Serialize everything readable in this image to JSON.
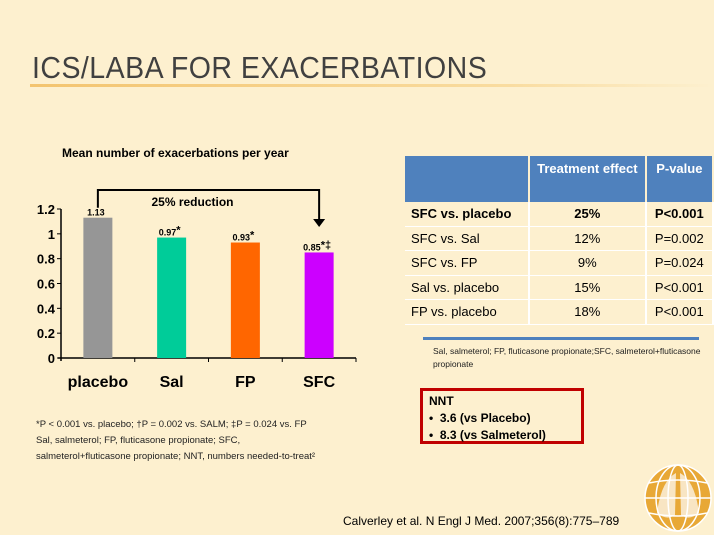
{
  "title": "ICS/LABA FOR EXACERBATIONS",
  "chart_data": {
    "type": "bar",
    "title": "Mean number of exacerbations per year",
    "categories": [
      "placebo",
      "Sal",
      "FP",
      "SFC"
    ],
    "values": [
      1.13,
      0.97,
      0.93,
      0.85
    ],
    "data_labels": [
      "1.13",
      "0.97",
      "0.93",
      "0.85"
    ],
    "label_marks": [
      "",
      "*",
      "*",
      "*‡"
    ],
    "colors": [
      "#969696",
      "#00cc99",
      "#ff6600",
      "#cc00ff"
    ],
    "ylim": [
      0,
      1.2
    ],
    "yticks": [
      "0",
      "0.2",
      "0.4",
      "0.6",
      "0.8",
      "1",
      "1.2"
    ],
    "annotation": "25% reduction",
    "grid": false
  },
  "table": {
    "headers": [
      "",
      "Treatment effect",
      "P-value"
    ],
    "rows": [
      [
        "SFC vs. placebo",
        "25%",
        "P<0.001"
      ],
      [
        "SFC vs. Sal",
        "12%",
        "P=0.002"
      ],
      [
        "SFC vs. FP",
        "9%",
        "P=0.024"
      ],
      [
        "Sal vs. placebo",
        "15%",
        "P<0.001"
      ],
      [
        "FP vs. placebo",
        "18%",
        "P<0.001"
      ]
    ],
    "note": "Sal, salmeterol; FP, fluticasone propionate;SFC, salmeterol+fluticasone propionate"
  },
  "nnt": {
    "heading": "NNT",
    "items": [
      "3.6 (vs Placebo)",
      "8.3 (vs Salmeterol)"
    ]
  },
  "footnotes": [
    "*P < 0.001 vs. placebo; †P = 0.002 vs. SALM; ‡P = 0.024 vs. FP",
    "Sal, salmeterol; FP, fluticasone propionate; SFC,",
    "salmeterol+fluticasone propionate;  NNT, numbers needed-to-treat²"
  ],
  "citation": "Calverley et al. N Engl J Med. 2007;356(8):775–789"
}
